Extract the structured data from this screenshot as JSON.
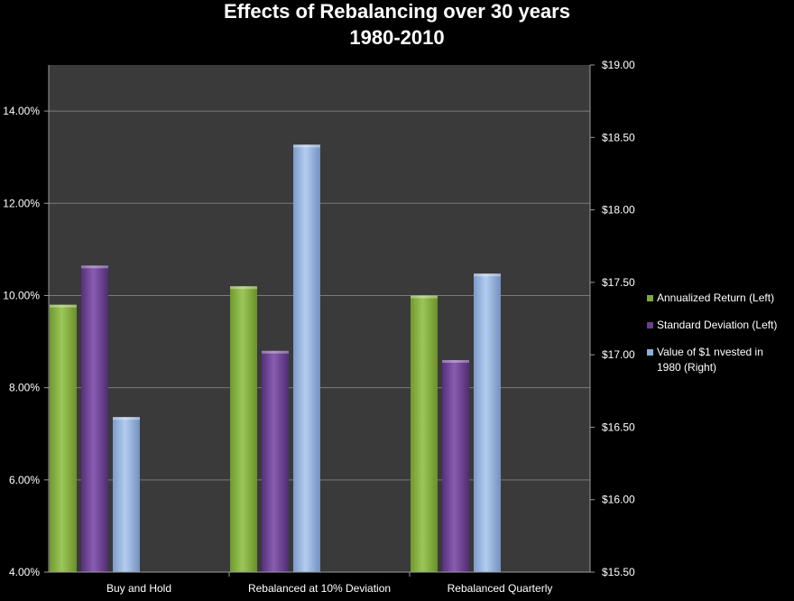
{
  "chart_data": {
    "type": "bar",
    "title": "Effects of Rebalancing over 30 years",
    "subtitle": "1980-2010",
    "categories": [
      "Buy and Hold",
      "Rebalanced at 10% Deviation",
      "Rebalanced Quarterly"
    ],
    "series": [
      {
        "name": "Annualized Return (Left)",
        "axis": "left",
        "values": [
          9.8,
          10.2,
          10.0
        ],
        "color": "#7fa83a"
      },
      {
        "name": "Standard Deviation (Left)",
        "axis": "left",
        "values": [
          10.65,
          8.8,
          8.6
        ],
        "color": "#6a3d8f"
      },
      {
        "name": "Value of $1 nvested in 1980 (Right)",
        "axis": "right",
        "values": [
          16.57,
          18.45,
          17.56
        ],
        "color": "#8eaede"
      }
    ],
    "y_left": {
      "ylim": [
        4,
        15
      ],
      "ticks": [
        4,
        6,
        8,
        10,
        12,
        14
      ],
      "tick_labels": [
        "4.00%",
        "6.00%",
        "8.00%",
        "10.00%",
        "12.00%",
        "14.00%"
      ]
    },
    "y_right": {
      "ylim": [
        15.5,
        19.0
      ],
      "ticks": [
        15.5,
        16.0,
        16.5,
        17.0,
        17.5,
        18.0,
        18.5,
        19.0
      ],
      "tick_labels": [
        "$15.50",
        "$16.00",
        "$16.50",
        "$17.00",
        "$17.50",
        "$18.00",
        "$18.50",
        "$19.00"
      ]
    },
    "grid": true,
    "legend_position": "right",
    "background": "#3a3a3a"
  }
}
